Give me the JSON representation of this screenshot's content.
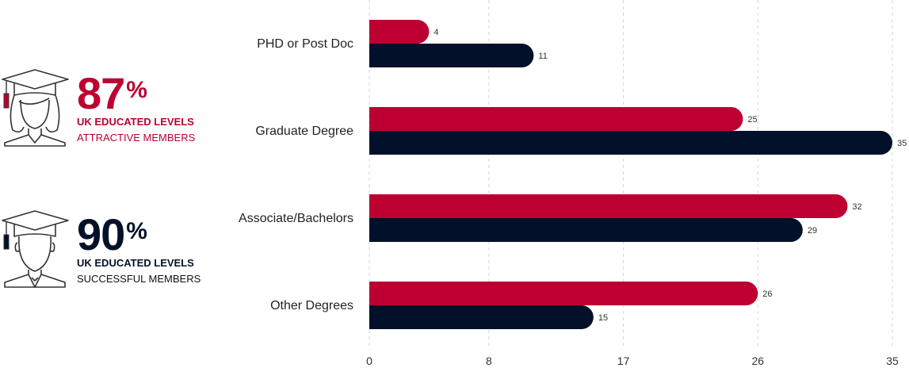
{
  "stats": [
    {
      "percent": "87",
      "percent_sign": "%",
      "line1": "UK EDUCATED LEVELS",
      "line2": "ATTRACTIVE MEMBERS",
      "icon": "female-graduate-icon"
    },
    {
      "percent": "90",
      "percent_sign": "%",
      "line1": "UK EDUCATED LEVELS",
      "line2": "SUCCESSFUL MEMBERS",
      "icon": "male-graduate-icon"
    }
  ],
  "colors": {
    "red": "#bd0031",
    "navy": "#021129"
  },
  "chart_data": {
    "type": "bar",
    "orientation": "horizontal",
    "categories": [
      "PHD or Post Doc",
      "Graduate Degree",
      "Associate/Bachelors",
      "Other Degrees"
    ],
    "series": [
      {
        "values": [
          4,
          25,
          32,
          26
        ],
        "color": "#bd0031"
      },
      {
        "values": [
          11,
          35,
          29,
          15
        ],
        "color": "#021129"
      }
    ],
    "xticks": [
      "0",
      "8",
      "17",
      "26",
      "35"
    ],
    "xlim": [
      0,
      35
    ],
    "grid": true
  }
}
